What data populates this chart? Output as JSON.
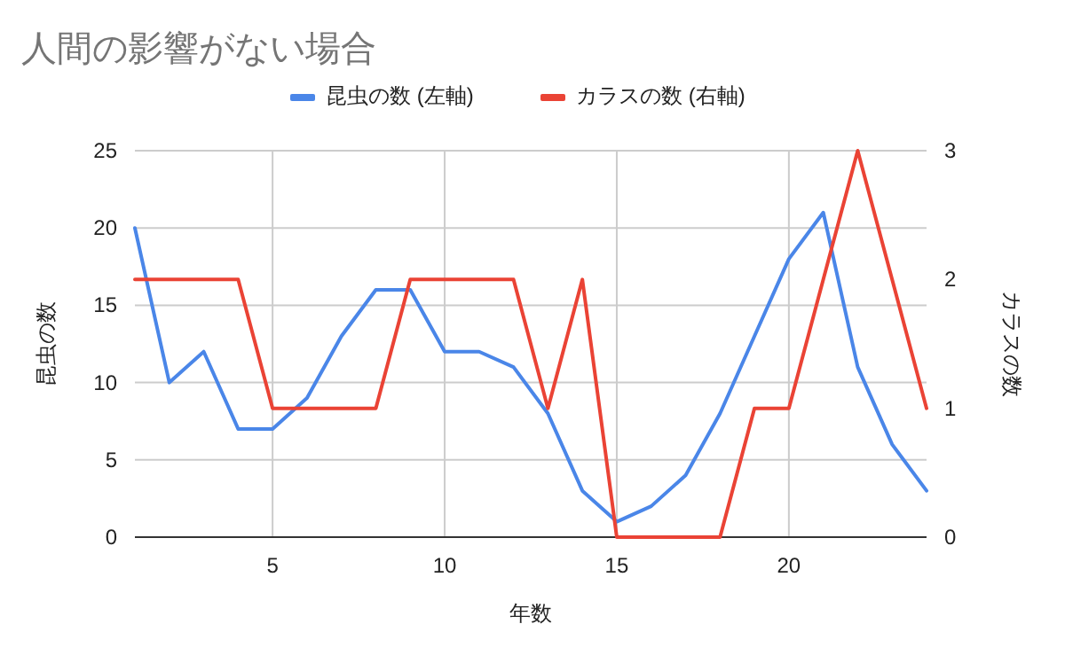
{
  "chart_data": {
    "type": "line",
    "title": "人間の影響がない場合",
    "xlabel": "年数",
    "ylabel": "昆虫の数",
    "y2label": "カラスの数",
    "x": [
      1,
      2,
      3,
      4,
      5,
      6,
      7,
      8,
      9,
      10,
      11,
      12,
      13,
      14,
      15,
      16,
      17,
      18,
      19,
      20,
      21,
      22,
      23,
      24
    ],
    "series": [
      {
        "name": "昆虫の数 (左軸)",
        "color": "#4a86e8",
        "values": [
          20,
          10,
          12,
          7,
          7,
          9,
          13,
          16,
          16,
          12,
          12,
          11,
          8,
          3,
          1,
          2,
          4,
          8,
          13,
          18,
          21,
          11,
          6,
          3
        ]
      },
      {
        "name": "カラスの数 (右軸)",
        "color": "#ea4335",
        "axis": "y2",
        "values": [
          2,
          2,
          2,
          2,
          1,
          1,
          1,
          1,
          2,
          2,
          2,
          2,
          1,
          2,
          0,
          0,
          0,
          0,
          1,
          1,
          2,
          3,
          2,
          1
        ]
      }
    ],
    "xlim": [
      1,
      24
    ],
    "xticks": [
      5,
      10,
      15,
      20
    ],
    "ylim": [
      0,
      25
    ],
    "yticks": [
      0,
      5,
      10,
      15,
      20,
      25
    ],
    "y2lim": [
      0,
      3
    ],
    "y2ticks": [
      0,
      1,
      2,
      3
    ],
    "grid": true,
    "legend": "top"
  }
}
